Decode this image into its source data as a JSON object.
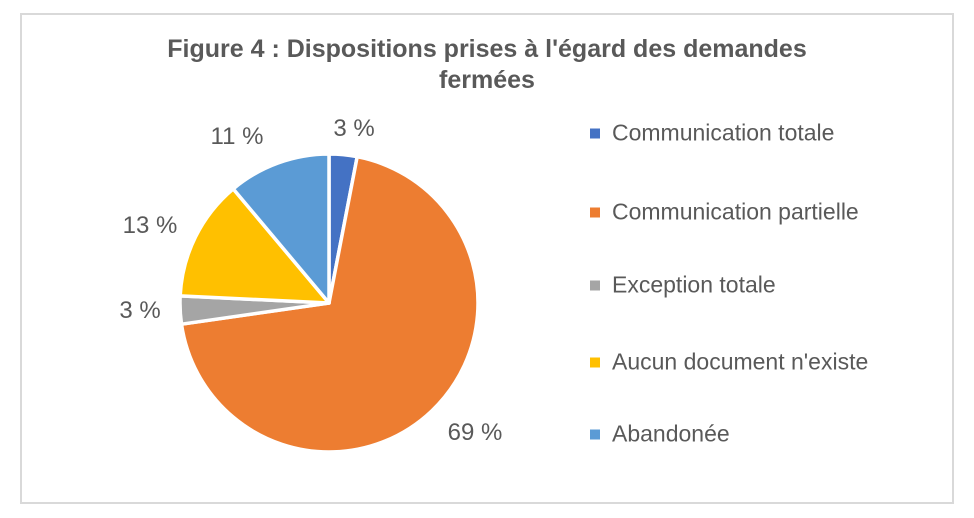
{
  "figure": {
    "title_full": "Figure 4 : Dispositions prises à l'égard des demandes fermées",
    "border_color": "#D9D9D9",
    "text_color": "#595959",
    "background": "#ffffff"
  },
  "chart_data": {
    "type": "pie",
    "title": "Figure 4 : Dispositions prises à l'égard des demandes fermées",
    "title_lines": [
      "Figure 4 : Dispositions prises à l'égard des demandes",
      "fermées"
    ],
    "categories": [
      "Communication totale",
      "Communication partielle",
      "Exception totale",
      "Aucun document n'existe",
      "Abandonée"
    ],
    "values": [
      3,
      69,
      3,
      13,
      11
    ],
    "unit": "%",
    "data_labels": [
      "3 %",
      "69 %",
      "3 %",
      "13 %",
      "11 %"
    ],
    "colors": [
      "#4472C4",
      "#ED7D31",
      "#A5A5A5",
      "#FFC000",
      "#5B9BD5"
    ],
    "slice_border_color": "#FFFFFF",
    "start_angle_deg": 0,
    "direction": "clockwise",
    "legend_position": "right",
    "grid": false
  }
}
